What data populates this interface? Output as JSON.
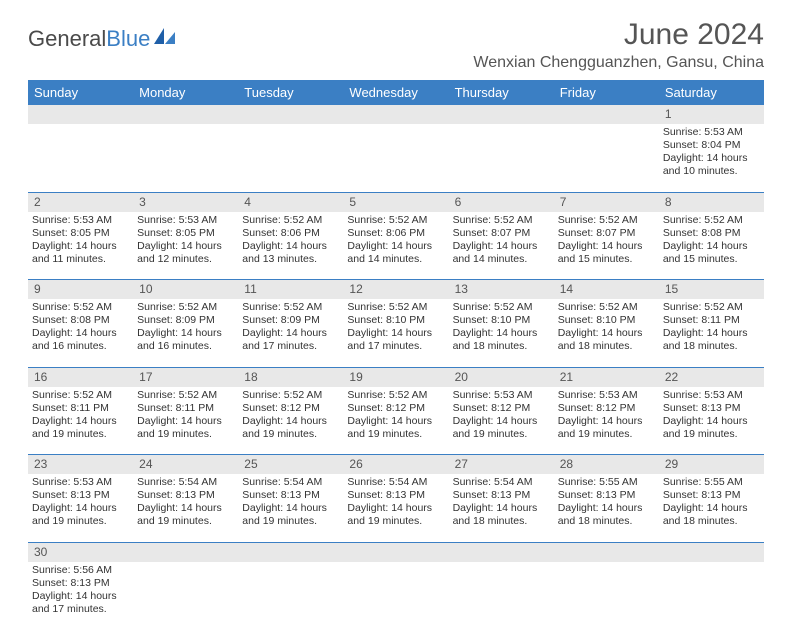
{
  "brand": {
    "first": "General",
    "second": "Blue"
  },
  "title": "June 2024",
  "location": "Wenxian Chengguanzhen, Gansu, China",
  "colors": {
    "header_bg": "#3b7fc4",
    "header_text": "#ffffff",
    "daynum_bg": "#e8e8e8",
    "text": "#333333",
    "title_text": "#555555",
    "row_divider": "#3b7fc4"
  },
  "typography": {
    "title_fontsize": 30,
    "location_fontsize": 16,
    "header_fontsize": 13,
    "daynum_fontsize": 12,
    "cell_fontsize": 10.5
  },
  "days_of_week": [
    "Sunday",
    "Monday",
    "Tuesday",
    "Wednesday",
    "Thursday",
    "Friday",
    "Saturday"
  ],
  "weeks": [
    [
      null,
      null,
      null,
      null,
      null,
      null,
      {
        "n": "1",
        "sunrise": "Sunrise: 5:53 AM",
        "sunset": "Sunset: 8:04 PM",
        "daylight": "Daylight: 14 hours and 10 minutes."
      }
    ],
    [
      {
        "n": "2",
        "sunrise": "Sunrise: 5:53 AM",
        "sunset": "Sunset: 8:05 PM",
        "daylight": "Daylight: 14 hours and 11 minutes."
      },
      {
        "n": "3",
        "sunrise": "Sunrise: 5:53 AM",
        "sunset": "Sunset: 8:05 PM",
        "daylight": "Daylight: 14 hours and 12 minutes."
      },
      {
        "n": "4",
        "sunrise": "Sunrise: 5:52 AM",
        "sunset": "Sunset: 8:06 PM",
        "daylight": "Daylight: 14 hours and 13 minutes."
      },
      {
        "n": "5",
        "sunrise": "Sunrise: 5:52 AM",
        "sunset": "Sunset: 8:06 PM",
        "daylight": "Daylight: 14 hours and 14 minutes."
      },
      {
        "n": "6",
        "sunrise": "Sunrise: 5:52 AM",
        "sunset": "Sunset: 8:07 PM",
        "daylight": "Daylight: 14 hours and 14 minutes."
      },
      {
        "n": "7",
        "sunrise": "Sunrise: 5:52 AM",
        "sunset": "Sunset: 8:07 PM",
        "daylight": "Daylight: 14 hours and 15 minutes."
      },
      {
        "n": "8",
        "sunrise": "Sunrise: 5:52 AM",
        "sunset": "Sunset: 8:08 PM",
        "daylight": "Daylight: 14 hours and 15 minutes."
      }
    ],
    [
      {
        "n": "9",
        "sunrise": "Sunrise: 5:52 AM",
        "sunset": "Sunset: 8:08 PM",
        "daylight": "Daylight: 14 hours and 16 minutes."
      },
      {
        "n": "10",
        "sunrise": "Sunrise: 5:52 AM",
        "sunset": "Sunset: 8:09 PM",
        "daylight": "Daylight: 14 hours and 16 minutes."
      },
      {
        "n": "11",
        "sunrise": "Sunrise: 5:52 AM",
        "sunset": "Sunset: 8:09 PM",
        "daylight": "Daylight: 14 hours and 17 minutes."
      },
      {
        "n": "12",
        "sunrise": "Sunrise: 5:52 AM",
        "sunset": "Sunset: 8:10 PM",
        "daylight": "Daylight: 14 hours and 17 minutes."
      },
      {
        "n": "13",
        "sunrise": "Sunrise: 5:52 AM",
        "sunset": "Sunset: 8:10 PM",
        "daylight": "Daylight: 14 hours and 18 minutes."
      },
      {
        "n": "14",
        "sunrise": "Sunrise: 5:52 AM",
        "sunset": "Sunset: 8:10 PM",
        "daylight": "Daylight: 14 hours and 18 minutes."
      },
      {
        "n": "15",
        "sunrise": "Sunrise: 5:52 AM",
        "sunset": "Sunset: 8:11 PM",
        "daylight": "Daylight: 14 hours and 18 minutes."
      }
    ],
    [
      {
        "n": "16",
        "sunrise": "Sunrise: 5:52 AM",
        "sunset": "Sunset: 8:11 PM",
        "daylight": "Daylight: 14 hours and 19 minutes."
      },
      {
        "n": "17",
        "sunrise": "Sunrise: 5:52 AM",
        "sunset": "Sunset: 8:11 PM",
        "daylight": "Daylight: 14 hours and 19 minutes."
      },
      {
        "n": "18",
        "sunrise": "Sunrise: 5:52 AM",
        "sunset": "Sunset: 8:12 PM",
        "daylight": "Daylight: 14 hours and 19 minutes."
      },
      {
        "n": "19",
        "sunrise": "Sunrise: 5:52 AM",
        "sunset": "Sunset: 8:12 PM",
        "daylight": "Daylight: 14 hours and 19 minutes."
      },
      {
        "n": "20",
        "sunrise": "Sunrise: 5:53 AM",
        "sunset": "Sunset: 8:12 PM",
        "daylight": "Daylight: 14 hours and 19 minutes."
      },
      {
        "n": "21",
        "sunrise": "Sunrise: 5:53 AM",
        "sunset": "Sunset: 8:12 PM",
        "daylight": "Daylight: 14 hours and 19 minutes."
      },
      {
        "n": "22",
        "sunrise": "Sunrise: 5:53 AM",
        "sunset": "Sunset: 8:13 PM",
        "daylight": "Daylight: 14 hours and 19 minutes."
      }
    ],
    [
      {
        "n": "23",
        "sunrise": "Sunrise: 5:53 AM",
        "sunset": "Sunset: 8:13 PM",
        "daylight": "Daylight: 14 hours and 19 minutes."
      },
      {
        "n": "24",
        "sunrise": "Sunrise: 5:54 AM",
        "sunset": "Sunset: 8:13 PM",
        "daylight": "Daylight: 14 hours and 19 minutes."
      },
      {
        "n": "25",
        "sunrise": "Sunrise: 5:54 AM",
        "sunset": "Sunset: 8:13 PM",
        "daylight": "Daylight: 14 hours and 19 minutes."
      },
      {
        "n": "26",
        "sunrise": "Sunrise: 5:54 AM",
        "sunset": "Sunset: 8:13 PM",
        "daylight": "Daylight: 14 hours and 19 minutes."
      },
      {
        "n": "27",
        "sunrise": "Sunrise: 5:54 AM",
        "sunset": "Sunset: 8:13 PM",
        "daylight": "Daylight: 14 hours and 18 minutes."
      },
      {
        "n": "28",
        "sunrise": "Sunrise: 5:55 AM",
        "sunset": "Sunset: 8:13 PM",
        "daylight": "Daylight: 14 hours and 18 minutes."
      },
      {
        "n": "29",
        "sunrise": "Sunrise: 5:55 AM",
        "sunset": "Sunset: 8:13 PM",
        "daylight": "Daylight: 14 hours and 18 minutes."
      }
    ],
    [
      {
        "n": "30",
        "sunrise": "Sunrise: 5:56 AM",
        "sunset": "Sunset: 8:13 PM",
        "daylight": "Daylight: 14 hours and 17 minutes."
      },
      null,
      null,
      null,
      null,
      null,
      null
    ]
  ]
}
